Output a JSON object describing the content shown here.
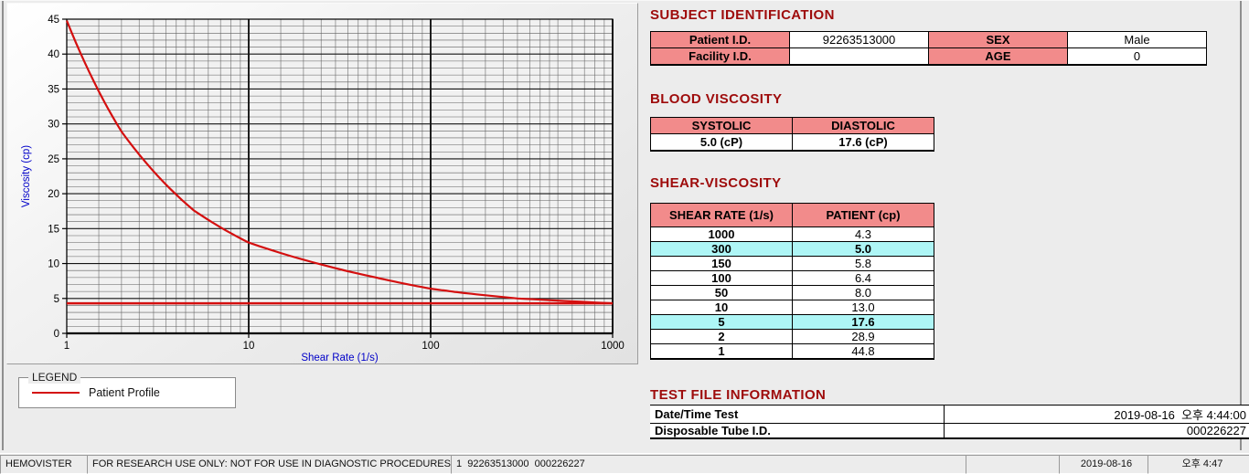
{
  "colors": {
    "accent_red": "#d40f0f",
    "title_maroon": "#9e0b0b",
    "header_salmon": "#f28b8b",
    "highlight_cyan": "#aef6f6",
    "axis_blue": "#0000c8"
  },
  "chart_data": {
    "type": "line",
    "title": "",
    "xlabel": "Shear Rate (1/s)",
    "ylabel": "Viscosity (cp)",
    "x_scale": "log",
    "xlim": [
      1,
      1000
    ],
    "ylim": [
      0,
      45
    ],
    "y_tick_step": 5,
    "x_ticks": [
      1,
      10,
      100,
      1000
    ],
    "grid": "major+minor",
    "series": [
      {
        "name": "Patient Profile",
        "color": "#d40f0f",
        "x": [
          1,
          2,
          5,
          10,
          50,
          100,
          150,
          300,
          1000
        ],
        "y": [
          44.8,
          28.9,
          17.6,
          13.0,
          8.0,
          6.4,
          5.8,
          5.0,
          4.3
        ]
      }
    ],
    "reference_line": {
      "y": 4.3,
      "color": "#d40f0f"
    },
    "legend_position": "groupbox-below-left"
  },
  "legend": {
    "group_label": "LEGEND",
    "entries": [
      {
        "label": "Patient Profile",
        "color": "#d40f0f"
      }
    ]
  },
  "subject": {
    "title": "SUBJECT IDENTIFICATION",
    "rows": [
      {
        "cells": [
          {
            "t": "Patient I.D.",
            "h": true
          },
          {
            "t": "92263513000",
            "h": false
          },
          {
            "t": "SEX",
            "h": true
          },
          {
            "t": "Male",
            "h": false
          }
        ]
      },
      {
        "cells": [
          {
            "t": "Facility I.D.",
            "h": true
          },
          {
            "t": "",
            "h": false
          },
          {
            "t": "AGE",
            "h": true
          },
          {
            "t": "0",
            "h": false
          }
        ]
      }
    ]
  },
  "blood": {
    "title": "BLOOD VISCOSITY",
    "headers": [
      "SYSTOLIC",
      "DIASTOLIC"
    ],
    "values": [
      "5.0 (cP)",
      "17.6 (cP)"
    ]
  },
  "shear": {
    "title": "SHEAR-VISCOSITY",
    "headers": [
      "SHEAR RATE (1/s)",
      "PATIENT (cp)"
    ],
    "rows": [
      {
        "rate": "1000",
        "patient": "4.3",
        "highlight": false
      },
      {
        "rate": "300",
        "patient": "5.0",
        "highlight": true
      },
      {
        "rate": "150",
        "patient": "5.8",
        "highlight": false
      },
      {
        "rate": "100",
        "patient": "6.4",
        "highlight": false
      },
      {
        "rate": "50",
        "patient": "8.0",
        "highlight": false
      },
      {
        "rate": "10",
        "patient": "13.0",
        "highlight": false
      },
      {
        "rate": "5",
        "patient": "17.6",
        "highlight": true
      },
      {
        "rate": "2",
        "patient": "28.9",
        "highlight": false
      },
      {
        "rate": "1",
        "patient": "44.8",
        "highlight": false
      }
    ]
  },
  "test_file": {
    "title": "TEST FILE INFORMATION",
    "rows": [
      {
        "label": "Date/Time Test",
        "value": "2019-08-16  오후 4:44:00"
      },
      {
        "label": "Disposable Tube I.D.",
        "value": "000226227"
      }
    ]
  },
  "statusbar": {
    "panels": [
      {
        "text": "HEMOVISTER"
      },
      {
        "text": "FOR RESEARCH USE ONLY: NOT FOR USE IN DIAGNOSTIC PROCEDURES"
      },
      {
        "text": "1  92263513000  000226227"
      },
      {
        "text": ""
      },
      {
        "text": "2019-08-16"
      },
      {
        "text": "오후 4:47"
      }
    ]
  }
}
